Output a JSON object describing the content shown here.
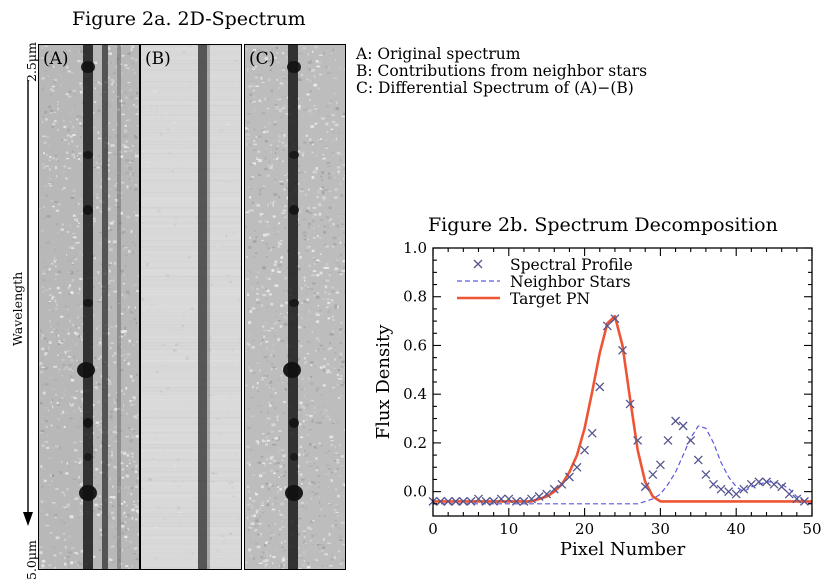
{
  "figure2a": {
    "title": "Figure 2a. 2D-Spectrum",
    "wavelength_start": "2.5μm",
    "wavelength_end": "5.0μm",
    "axis_label": "Wavelength",
    "panels": [
      {
        "id": "A",
        "label": "(A)",
        "description": "A: Original spectrum"
      },
      {
        "id": "B",
        "label": "(B)",
        "description": "B: Contributions from neighbor stars"
      },
      {
        "id": "C",
        "label": "(C)",
        "description": "C: Differential Spectrum of (A)−(B)"
      }
    ]
  },
  "chart_data": {
    "type": "line",
    "title": "Figure 2b. Spectrum Decomposition",
    "xlabel": "Pixel Number",
    "ylabel": "Flux Density",
    "xlim": [
      0,
      50
    ],
    "ylim": [
      -0.1,
      1.0
    ],
    "xticks": [
      0,
      10,
      20,
      30,
      40,
      50
    ],
    "yticks": [
      0.0,
      0.2,
      0.4,
      0.6,
      0.8,
      1.0
    ],
    "ytick_labels": [
      "0.0",
      "0.2",
      "0.4",
      "0.6",
      "0.8",
      "1.0"
    ],
    "legend_position": "top-left",
    "series": [
      {
        "name": "Spectral Profile",
        "style": "markers-x",
        "color": "#55558f",
        "x": [
          0,
          1,
          2,
          3,
          4,
          5,
          6,
          7,
          8,
          9,
          10,
          11,
          12,
          13,
          14,
          15,
          16,
          17,
          18,
          19,
          20,
          21,
          22,
          23,
          24,
          25,
          26,
          27,
          28,
          29,
          30,
          31,
          32,
          33,
          34,
          35,
          36,
          37,
          38,
          39,
          40,
          41,
          42,
          43,
          44,
          45,
          46,
          47,
          48,
          49
        ],
        "y": [
          -0.04,
          -0.04,
          -0.04,
          -0.04,
          -0.04,
          -0.04,
          -0.03,
          -0.04,
          -0.04,
          -0.03,
          -0.03,
          -0.04,
          -0.04,
          -0.03,
          -0.02,
          -0.01,
          0.01,
          0.03,
          0.06,
          0.1,
          0.17,
          0.24,
          0.43,
          0.68,
          0.71,
          0.58,
          0.36,
          0.21,
          0.02,
          0.07,
          0.11,
          0.21,
          0.29,
          0.27,
          0.21,
          0.13,
          0.07,
          0.03,
          0.01,
          0.0,
          -0.01,
          0.01,
          0.03,
          0.04,
          0.04,
          0.03,
          0.02,
          -0.01,
          -0.03,
          -0.04
        ]
      },
      {
        "name": "Neighbor Stars",
        "style": "dashed",
        "color": "#5a5ae0",
        "x": [
          0,
          5,
          10,
          15,
          20,
          25,
          26,
          27,
          28,
          29,
          30,
          31,
          32,
          33,
          34,
          35,
          36,
          37,
          38,
          39,
          40,
          41,
          42,
          43,
          44,
          45,
          46,
          47,
          48,
          49,
          50
        ],
        "y": [
          -0.05,
          -0.05,
          -0.05,
          -0.05,
          -0.05,
          -0.05,
          -0.05,
          -0.05,
          -0.04,
          -0.03,
          -0.01,
          0.03,
          0.08,
          0.15,
          0.22,
          0.27,
          0.26,
          0.2,
          0.12,
          0.06,
          0.02,
          0.0,
          0.02,
          0.03,
          0.04,
          0.04,
          0.03,
          0.01,
          -0.02,
          -0.04,
          -0.05
        ]
      },
      {
        "name": "Target PN",
        "style": "solid",
        "color": "#ee5535",
        "x": [
          0,
          5,
          10,
          13,
          15,
          16,
          17,
          18,
          19,
          20,
          21,
          22,
          23,
          24,
          25,
          26,
          27,
          28,
          29,
          30,
          31,
          32,
          35,
          40,
          45,
          50
        ],
        "y": [
          -0.04,
          -0.04,
          -0.04,
          -0.04,
          -0.02,
          0.0,
          0.03,
          0.08,
          0.15,
          0.26,
          0.41,
          0.57,
          0.69,
          0.72,
          0.6,
          0.38,
          0.17,
          0.04,
          -0.02,
          -0.04,
          -0.04,
          -0.04,
          -0.04,
          -0.04,
          -0.04,
          -0.04
        ]
      }
    ]
  }
}
